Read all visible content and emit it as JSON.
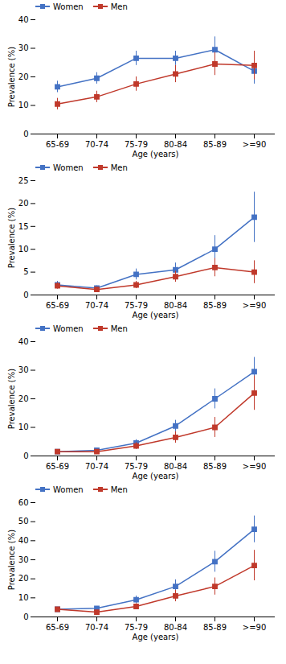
{
  "chart_data": [
    {
      "type": "line",
      "categories": [
        "65-69",
        "70-74",
        "75-79",
        "80-84",
        "85-89",
        ">=90"
      ],
      "series": [
        {
          "name": "Women",
          "color": "#4472C4",
          "marker": "square",
          "values": [
            16.5,
            19.5,
            26.5,
            26.5,
            29.5,
            22.0
          ],
          "errors": [
            2.0,
            2.0,
            2.5,
            2.5,
            4.5,
            4.5
          ]
        },
        {
          "name": "Men",
          "color": "#C0392B",
          "marker": "square",
          "values": [
            10.5,
            13.0,
            17.5,
            21.0,
            24.5,
            24.0
          ],
          "errors": [
            2.0,
            2.0,
            2.5,
            3.0,
            4.0,
            5.0
          ]
        }
      ],
      "xlabel": "Age (years)",
      "ylabel": "Prevalence (%)",
      "ylim": [
        0,
        40
      ],
      "yticks": [
        0,
        10,
        20,
        30,
        40
      ],
      "grid": false,
      "legend": "upper left"
    },
    {
      "type": "line",
      "categories": [
        "65-69",
        "70-74",
        "75-79",
        "80-84",
        "85-89",
        ">=90"
      ],
      "series": [
        {
          "name": "Women",
          "color": "#4472C4",
          "marker": "square",
          "values": [
            2.2,
            1.5,
            4.5,
            5.5,
            10.0,
            17.0
          ],
          "errors": [
            0.8,
            0.5,
            1.2,
            1.5,
            3.0,
            5.5
          ]
        },
        {
          "name": "Men",
          "color": "#C0392B",
          "marker": "square",
          "values": [
            2.0,
            1.2,
            2.2,
            4.0,
            6.0,
            5.0
          ],
          "errors": [
            0.7,
            0.4,
            0.8,
            1.2,
            2.0,
            2.5
          ]
        }
      ],
      "xlabel": "Age (years)",
      "ylabel": "Prevalence (%)",
      "ylim": [
        0,
        25
      ],
      "yticks": [
        0,
        5,
        10,
        15,
        20,
        25
      ],
      "grid": false,
      "legend": "upper left"
    },
    {
      "type": "line",
      "categories": [
        "65-69",
        "70-74",
        "75-79",
        "80-84",
        "85-89",
        ">=90"
      ],
      "series": [
        {
          "name": "Women",
          "color": "#4472C4",
          "marker": "square",
          "values": [
            1.5,
            2.0,
            4.5,
            10.5,
            20.0,
            29.5
          ],
          "errors": [
            0.6,
            0.7,
            1.2,
            2.0,
            3.5,
            5.0
          ]
        },
        {
          "name": "Men",
          "color": "#C0392B",
          "marker": "square",
          "values": [
            1.5,
            1.5,
            3.5,
            6.5,
            10.0,
            22.0
          ],
          "errors": [
            0.5,
            0.5,
            1.2,
            2.0,
            3.5,
            6.0
          ]
        }
      ],
      "xlabel": "Age (years)",
      "ylabel": "Prevalence (%)",
      "ylim": [
        0,
        40
      ],
      "yticks": [
        0,
        10,
        20,
        30,
        40
      ],
      "grid": false,
      "legend": "upper left"
    },
    {
      "type": "line",
      "categories": [
        "65-69",
        "70-74",
        "75-79",
        "80-84",
        "85-89",
        ">=90"
      ],
      "series": [
        {
          "name": "Women",
          "color": "#4472C4",
          "marker": "square",
          "values": [
            4.0,
            4.5,
            9.0,
            16.0,
            29.0,
            46.0
          ],
          "errors": [
            1.0,
            1.0,
            2.0,
            3.5,
            5.5,
            7.0
          ]
        },
        {
          "name": "Men",
          "color": "#C0392B",
          "marker": "square",
          "values": [
            4.0,
            2.5,
            5.5,
            11.0,
            16.0,
            27.0
          ],
          "errors": [
            1.0,
            0.8,
            1.5,
            3.0,
            4.5,
            8.0
          ]
        }
      ],
      "xlabel": "Age (years)",
      "ylabel": "Prevalence (%)",
      "ylim": [
        0,
        60
      ],
      "yticks": [
        0,
        10,
        20,
        30,
        40,
        50,
        60
      ],
      "grid": false,
      "legend": "upper left"
    }
  ]
}
